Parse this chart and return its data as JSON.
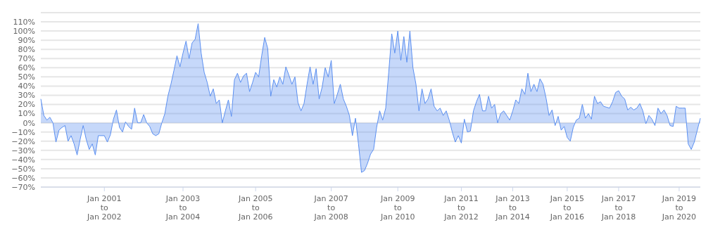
{
  "chart_data": {
    "type": "area",
    "grid": "y",
    "legend": false,
    "marker": "none",
    "line_style": "solid",
    "categories": [
      null,
      null,
      null,
      null,
      null,
      null,
      null,
      null,
      null,
      null,
      null,
      null,
      null,
      null,
      null,
      null,
      null,
      null,
      null,
      null,
      null,
      "Jan 2001\nto\nJan 2002",
      null,
      null,
      null,
      null,
      null,
      null,
      null,
      null,
      null,
      null,
      null,
      null,
      null,
      null,
      null,
      null,
      null,
      null,
      null,
      null,
      null,
      null,
      null,
      null,
      null,
      "Jan 2003\nto\nJan 2004",
      null,
      null,
      null,
      null,
      null,
      null,
      null,
      null,
      null,
      null,
      null,
      null,
      null,
      null,
      null,
      null,
      null,
      null,
      null,
      null,
      null,
      null,
      null,
      "Jan 2005\nto\nJan 2006",
      null,
      null,
      null,
      null,
      null,
      null,
      null,
      null,
      null,
      null,
      null,
      null,
      null,
      null,
      null,
      null,
      null,
      null,
      null,
      null,
      null,
      null,
      null,
      null,
      "Jan 2007\nto\nJan 2008",
      null,
      null,
      null,
      null,
      null,
      null,
      null,
      null,
      null,
      null,
      null,
      null,
      null,
      null,
      null,
      null,
      null,
      null,
      null,
      null,
      null,
      "Jan 2009\nto\nJan 2010",
      null,
      null,
      null,
      null,
      null,
      null,
      null,
      null,
      null,
      null,
      null,
      null,
      null,
      null,
      null,
      null,
      null,
      null,
      null,
      null,
      "Jan 2011\nto\nJan 2012",
      null,
      null,
      null,
      null,
      null,
      null,
      null,
      null,
      null,
      null,
      null,
      null,
      null,
      null,
      null,
      null,
      "Jan 2013\nto\nJan 2014",
      null,
      null,
      null,
      null,
      null,
      null,
      null,
      null,
      null,
      null,
      null,
      null,
      null,
      null,
      null,
      null,
      null,
      "Jan 2015\nto\nJan 2016",
      null,
      null,
      null,
      null,
      null,
      null,
      null,
      null,
      null,
      null,
      null,
      null,
      null,
      null,
      null,
      null,
      "Jan 2017\nto\nJan 2018",
      null,
      null,
      null,
      null,
      null,
      null,
      null,
      null,
      null,
      null,
      null,
      null,
      null,
      null,
      null,
      null,
      null,
      null,
      null,
      "Jan 2019\nto\nJan 2020",
      null,
      null,
      null,
      null,
      null,
      null,
      null
    ],
    "ylim": [
      -70,
      120
    ],
    "yticks": [
      {
        "value": -70,
        "label": "−70%"
      },
      {
        "value": -60,
        "label": "−60%"
      },
      {
        "value": -50,
        "label": "−50%"
      },
      {
        "value": -40,
        "label": "−40%"
      },
      {
        "value": -30,
        "label": "−30%"
      },
      {
        "value": -20,
        "label": "−20%"
      },
      {
        "value": -10,
        "label": "−10%"
      },
      {
        "value": 0,
        "label": "0%"
      },
      {
        "value": 10,
        "label": "10%"
      },
      {
        "value": 20,
        "label": "20%"
      },
      {
        "value": 30,
        "label": "30%"
      },
      {
        "value": 40,
        "label": "40%"
      },
      {
        "value": 50,
        "label": "50%"
      },
      {
        "value": 60,
        "label": "60%"
      },
      {
        "value": 70,
        "label": "70%"
      },
      {
        "value": 80,
        "label": "80%"
      },
      {
        "value": 90,
        "label": "90%"
      },
      {
        "value": 100,
        "label": "100%"
      },
      {
        "value": 110,
        "label": "110%"
      },
      {
        "value": 120,
        "label": null
      }
    ],
    "series": [
      {
        "color": "#5b8ff0",
        "values": [
          26,
          8,
          3,
          6,
          0,
          -21,
          -8,
          -5,
          -3,
          -20,
          -14,
          -23,
          -35,
          -18,
          -3,
          -18,
          -29,
          -23,
          -35,
          -14,
          -14,
          -14,
          -21,
          -13,
          4,
          14,
          -5,
          -10,
          1,
          -4,
          -7,
          16,
          0,
          0,
          9,
          0,
          -4,
          -12,
          -14,
          -12,
          0,
          10,
          29,
          42,
          57,
          73,
          61,
          76,
          89,
          70,
          87,
          91,
          108,
          76,
          55,
          44,
          29,
          37,
          21,
          25,
          0,
          13,
          25,
          7,
          47,
          54,
          44,
          51,
          54,
          34,
          44,
          55,
          50,
          73,
          93,
          81,
          29,
          47,
          39,
          50,
          42,
          61,
          52,
          42,
          50,
          22,
          13,
          21,
          42,
          61,
          42,
          59,
          26,
          39,
          60,
          50,
          68,
          21,
          31,
          42,
          26,
          18,
          8,
          -14,
          5,
          -23,
          -54,
          -52,
          -44,
          -34,
          -29,
          -5,
          13,
          3,
          16,
          55,
          97,
          76,
          100,
          68,
          94,
          66,
          100,
          60,
          42,
          13,
          37,
          21,
          26,
          37,
          18,
          13,
          16,
          8,
          13,
          3,
          -10,
          -21,
          -14,
          -22,
          4,
          -10,
          -9,
          13,
          23,
          31,
          13,
          13,
          29,
          16,
          20,
          0,
          10,
          13,
          8,
          3,
          13,
          25,
          21,
          37,
          31,
          54,
          34,
          42,
          34,
          48,
          42,
          27,
          8,
          14,
          -3,
          7,
          -8,
          -4,
          -16,
          -20,
          -5,
          3,
          5,
          20,
          5,
          10,
          4,
          29,
          21,
          23,
          18,
          17,
          16,
          23,
          33,
          35,
          29,
          26,
          14,
          17,
          14,
          16,
          21,
          13,
          -1,
          8,
          4,
          -3,
          16,
          10,
          14,
          8,
          -3,
          -4,
          18,
          16,
          16,
          16,
          -23,
          -29,
          -21,
          -8,
          5
        ]
      }
    ]
  }
}
